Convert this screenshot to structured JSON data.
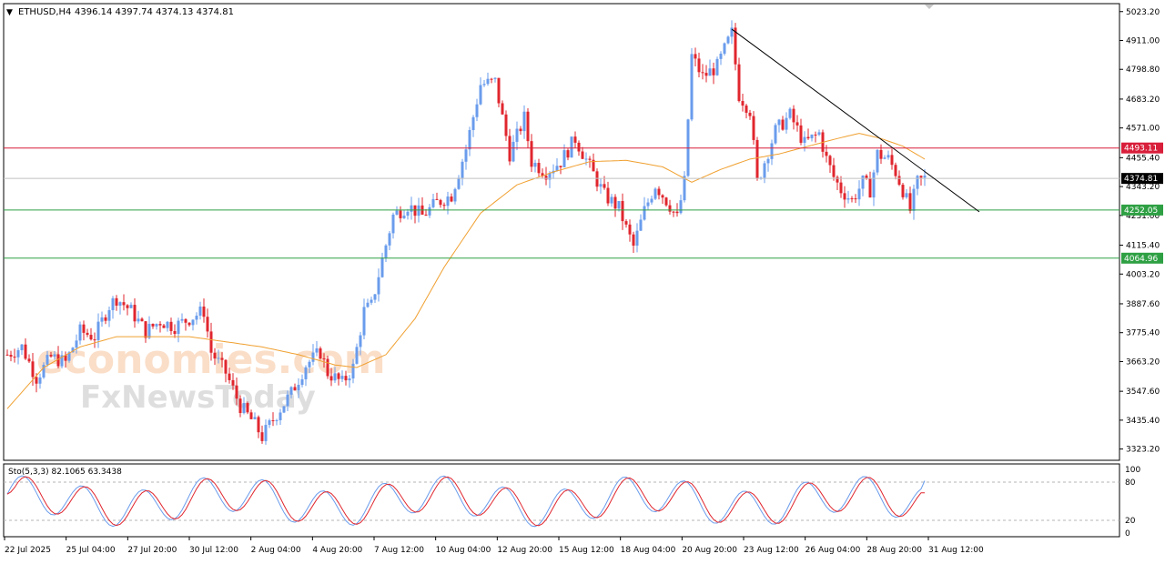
{
  "header": {
    "menu_glyph": "▼",
    "symbol": "ETHUSD,H4",
    "ohlc": "4396.14 4397.74 4374.13 4374.81"
  },
  "watermark": {
    "line1": "economies.com",
    "line2": "FxNewsToday"
  },
  "chart_data": {
    "type": "candlestick",
    "symbol": "ETHUSD",
    "timeframe": "H4",
    "ylim": [
      3290,
      5040
    ],
    "y_ticks": [
      "5023.20",
      "4911.00",
      "4798.80",
      "4683.20",
      "4571.00",
      "4455.40",
      "4343.20",
      "4231.00",
      "4115.40",
      "4003.20",
      "3887.60",
      "3775.40",
      "3663.20",
      "3547.60",
      "3435.40",
      "3323.20"
    ],
    "x_ticks": [
      "22 Jul 2025",
      "25 Jul 04:00",
      "27 Jul 20:00",
      "30 Jul 12:00",
      "2 Aug 04:00",
      "4 Aug 20:00",
      "7 Aug 12:00",
      "10 Aug 04:00",
      "12 Aug 20:00",
      "15 Aug 12:00",
      "18 Aug 04:00",
      "20 Aug 20:00",
      "23 Aug 12:00",
      "26 Aug 04:00",
      "28 Aug 20:00",
      "31 Aug 12:00"
    ],
    "bar_count": 253,
    "price_markers": [
      {
        "label": "4493.11",
        "value": 4493.11,
        "color": "#d81e3a",
        "kind": "resistance"
      },
      {
        "label": "4374.81",
        "value": 4374.81,
        "color": "#000000",
        "kind": "last-price"
      },
      {
        "label": "4252.05",
        "value": 4252.05,
        "color": "#2ea043",
        "kind": "support"
      },
      {
        "label": "4064.96",
        "value": 4064.96,
        "color": "#2ea043",
        "kind": "support"
      }
    ],
    "trendline": {
      "from": {
        "bar": 199,
        "price": 4955
      },
      "to": {
        "bar": 267,
        "price": 4245
      }
    },
    "price_path": [
      [
        0,
        3690
      ],
      [
        4,
        3720
      ],
      [
        8,
        3600
      ],
      [
        12,
        3680
      ],
      [
        16,
        3660
      ],
      [
        20,
        3780
      ],
      [
        24,
        3760
      ],
      [
        28,
        3880
      ],
      [
        30,
        3910
      ],
      [
        34,
        3860
      ],
      [
        38,
        3780
      ],
      [
        42,
        3820
      ],
      [
        46,
        3800
      ],
      [
        50,
        3830
      ],
      [
        54,
        3860
      ],
      [
        56,
        3700
      ],
      [
        60,
        3620
      ],
      [
        64,
        3490
      ],
      [
        68,
        3420
      ],
      [
        70,
        3370
      ],
      [
        74,
        3460
      ],
      [
        78,
        3540
      ],
      [
        82,
        3650
      ],
      [
        86,
        3700
      ],
      [
        88,
        3620
      ],
      [
        90,
        3600
      ],
      [
        92,
        3580
      ],
      [
        95,
        3640
      ],
      [
        98,
        3860
      ],
      [
        100,
        3880
      ],
      [
        103,
        4060
      ],
      [
        106,
        4230
      ],
      [
        110,
        4270
      ],
      [
        114,
        4230
      ],
      [
        118,
        4280
      ],
      [
        122,
        4310
      ],
      [
        126,
        4490
      ],
      [
        130,
        4740
      ],
      [
        134,
        4750
      ],
      [
        136,
        4610
      ],
      [
        138,
        4470
      ],
      [
        142,
        4610
      ],
      [
        144,
        4440
      ],
      [
        148,
        4400
      ],
      [
        152,
        4440
      ],
      [
        156,
        4530
      ],
      [
        160,
        4420
      ],
      [
        164,
        4310
      ],
      [
        168,
        4260
      ],
      [
        170,
        4180
      ],
      [
        172,
        4110
      ],
      [
        175,
        4250
      ],
      [
        178,
        4350
      ],
      [
        182,
        4270
      ],
      [
        184,
        4220
      ],
      [
        186,
        4360
      ],
      [
        188,
        4850
      ],
      [
        191,
        4770
      ],
      [
        195,
        4810
      ],
      [
        199,
        4940
      ],
      [
        201,
        4700
      ],
      [
        204,
        4640
      ],
      [
        206,
        4360
      ],
      [
        208,
        4440
      ],
      [
        211,
        4560
      ],
      [
        215,
        4620
      ],
      [
        219,
        4510
      ],
      [
        223,
        4550
      ],
      [
        225,
        4450
      ],
      [
        227,
        4380
      ],
      [
        229,
        4330
      ],
      [
        232,
        4290
      ],
      [
        235,
        4360
      ],
      [
        237,
        4330
      ],
      [
        239,
        4470
      ],
      [
        242,
        4450
      ],
      [
        244,
        4400
      ],
      [
        246,
        4330
      ],
      [
        248,
        4250
      ],
      [
        250,
        4360
      ],
      [
        252,
        4375
      ]
    ],
    "ma_path": [
      [
        0,
        3480
      ],
      [
        10,
        3640
      ],
      [
        20,
        3720
      ],
      [
        30,
        3760
      ],
      [
        40,
        3760
      ],
      [
        50,
        3760
      ],
      [
        60,
        3740
      ],
      [
        70,
        3720
      ],
      [
        80,
        3690
      ],
      [
        90,
        3650
      ],
      [
        96,
        3640
      ],
      [
        104,
        3690
      ],
      [
        112,
        3830
      ],
      [
        120,
        4030
      ],
      [
        130,
        4240
      ],
      [
        140,
        4350
      ],
      [
        150,
        4400
      ],
      [
        160,
        4440
      ],
      [
        170,
        4445
      ],
      [
        180,
        4420
      ],
      [
        184,
        4390
      ],
      [
        188,
        4360
      ],
      [
        196,
        4410
      ],
      [
        204,
        4450
      ],
      [
        212,
        4470
      ],
      [
        220,
        4500
      ],
      [
        228,
        4530
      ],
      [
        234,
        4550
      ],
      [
        240,
        4530
      ],
      [
        246,
        4500
      ],
      [
        252,
        4450
      ]
    ],
    "stochastic": {
      "label": "Sto(5,3,3) 82.1065 63.3438",
      "main": 82.1065,
      "signal": 63.3438,
      "ylim": [
        0,
        100
      ],
      "levels": [
        80,
        20
      ],
      "scale_labels": [
        "100",
        "80",
        "20",
        "0"
      ],
      "main_color": "#6a9cec",
      "signal_color": "#e0262e"
    },
    "colors": {
      "bull": "#6a9cec",
      "bear": "#e0262e",
      "ma": "#f0a030",
      "trendline": "#000000",
      "grid_dash": "#b4b4b4"
    }
  }
}
